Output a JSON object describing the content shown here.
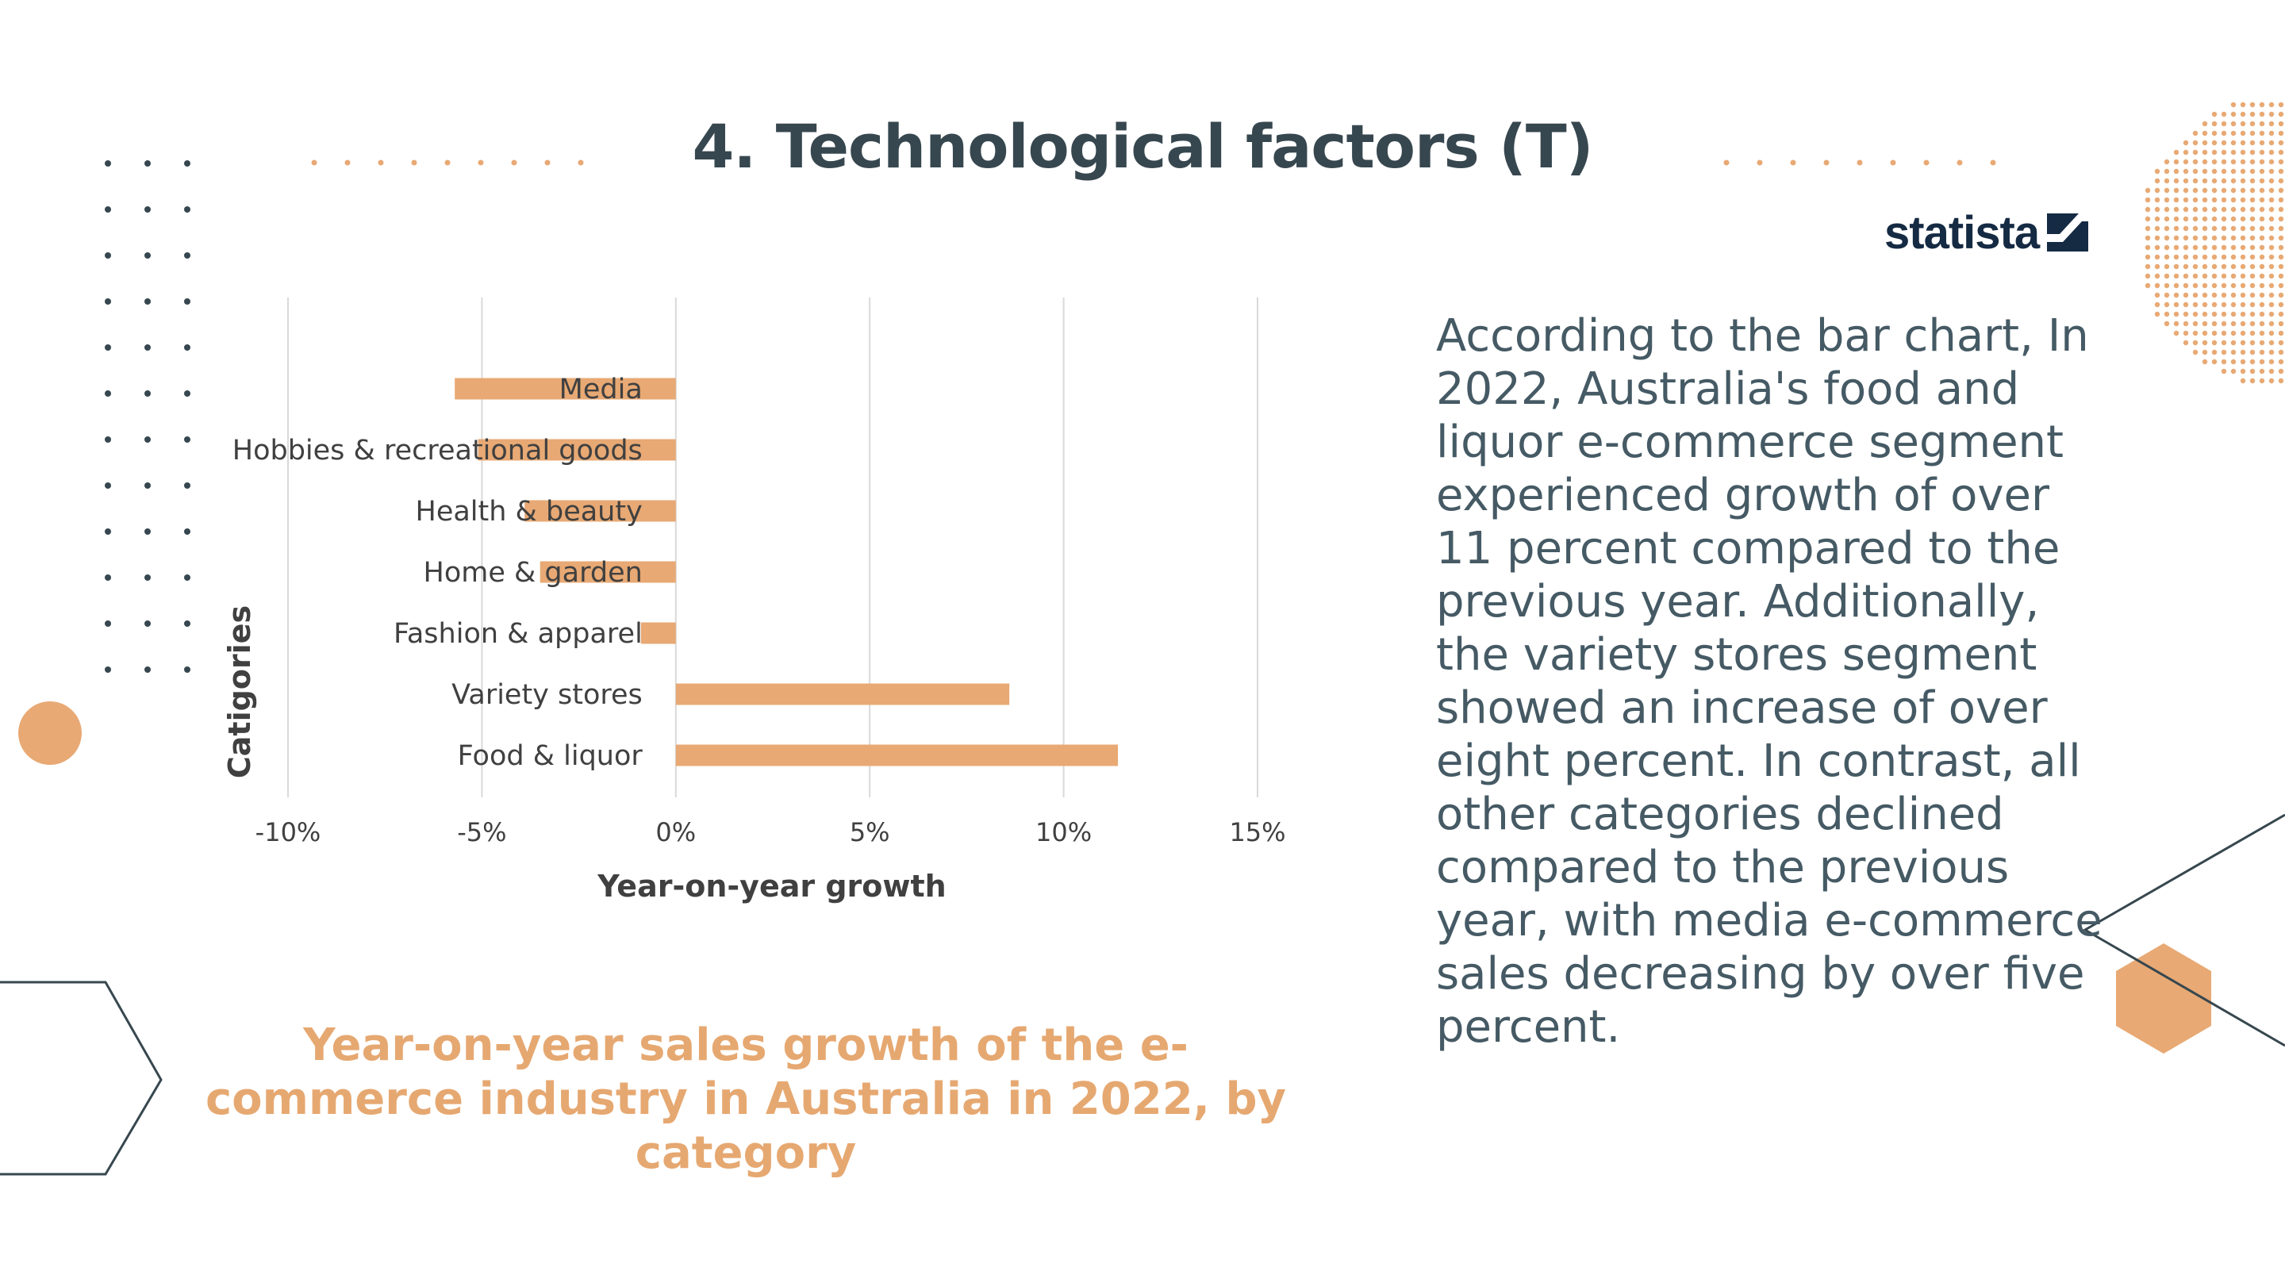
{
  "slide": {
    "title": "4. Technological factors (T)",
    "logo_text": "statista",
    "paragraph": "According to the bar chart, In 2022, Australia's food and liquor e-commerce segment experienced growth of over 11 percent compared to the previous year. Additionally, the variety stores segment showed an increase of over eight percent. In contrast, all other categories declined compared to the previous year, with media e-commerce sales decreasing by over five percent.",
    "caption": "Year-on-year sales growth of the e-commerce industry in Australia in 2022, by category"
  },
  "colors": {
    "accent": "#e8a974",
    "title": "#37474f",
    "text": "#455a64",
    "logo": "#152a43",
    "gridline": "#d9d9d9",
    "caption": "#e6a871"
  },
  "chart_data": {
    "type": "bar",
    "orientation": "horizontal",
    "categories": [
      "Media",
      "Hobbies & recreational goods",
      "Health & beauty",
      "Home & garden",
      "Fashion & apparel",
      "Variety stores",
      "Food & liquor"
    ],
    "values": [
      -5.7,
      -5.1,
      -3.9,
      -3.5,
      -0.9,
      8.6,
      11.4
    ],
    "xlabel": "Year-on-year growth",
    "ylabel": "Catigories",
    "xlim": [
      -10,
      15
    ],
    "xticks": [
      -10,
      -5,
      0,
      5,
      10,
      15
    ],
    "tick_labels": [
      "-10%",
      "-5%",
      "0%",
      "5%",
      "10%",
      "15%"
    ],
    "grid": "vertical",
    "legend": "none"
  }
}
